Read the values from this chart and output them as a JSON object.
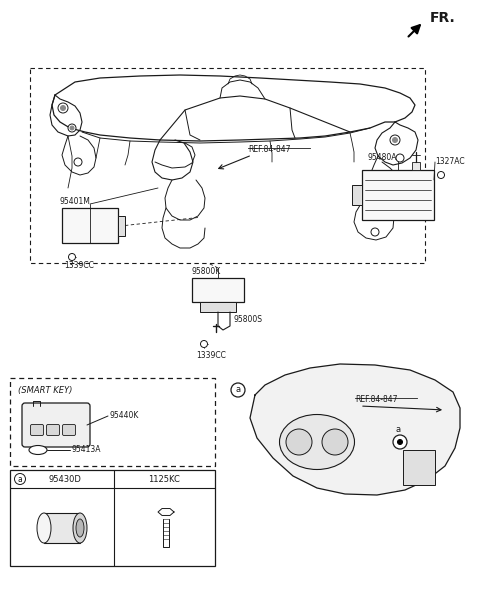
{
  "bg_color": "#ffffff",
  "line_color": "#1a1a1a",
  "fig_width": 4.8,
  "fig_height": 6.12,
  "dpi": 100,
  "fr_text": "FR.",
  "labels": {
    "ref84_847_top": "REF.84-847",
    "ref84_847_bot": "REF.84-847",
    "95480A": "95480A",
    "1327AC": "1327AC",
    "95401M": "95401M",
    "1339CC_left": "1339CC",
    "95800K": "95800K",
    "95800S": "95800S",
    "1339CC_mid": "1339CC",
    "smart_key": "(SMART KEY)",
    "95440K": "95440K",
    "95413A": "95413A",
    "a_label": "a",
    "95430D": "95430D",
    "1125KC": "1125KC"
  },
  "frame_color": "#1a1a1a",
  "dash_color": "#444444"
}
